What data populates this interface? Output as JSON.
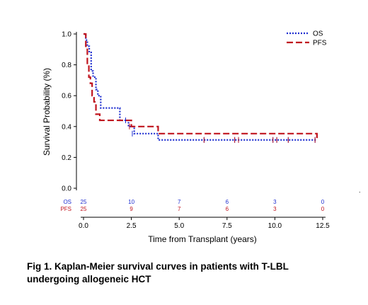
{
  "chart_data": {
    "type": "line",
    "title": "",
    "xlabel": "Time from Transplant (years)",
    "ylabel": "Survival Probability (%)",
    "xlim": [
      0,
      12.5
    ],
    "ylim": [
      0,
      1.0
    ],
    "x_ticks": [
      "0.0",
      "2.5",
      "5.0",
      "7.5",
      "10.0",
      "12.5"
    ],
    "x_tick_values": [
      0,
      2.5,
      5,
      7.5,
      10,
      12.5
    ],
    "y_ticks": [
      "0.0",
      "0.2",
      "0.4",
      "0.6",
      "0.8",
      "1.0"
    ],
    "y_tick_values": [
      0,
      0.2,
      0.4,
      0.6,
      0.8,
      1.0
    ],
    "grid": false,
    "legend_position": "top-right",
    "series": [
      {
        "name": "OS",
        "color": "#1f2fd0",
        "style": "dotted",
        "x": [
          0,
          0.12,
          0.2,
          0.3,
          0.4,
          0.5,
          0.65,
          0.75,
          0.9,
          1.9,
          2.35,
          2.65,
          3.9,
          12.2
        ],
        "y": [
          1.0,
          0.96,
          0.92,
          0.88,
          0.76,
          0.72,
          0.64,
          0.6,
          0.52,
          0.44,
          0.4,
          0.354,
          0.313,
          0.313
        ],
        "censor_x": [
          2.2,
          2.55,
          6.3,
          7.9,
          8.1,
          9.9,
          10.1,
          10.7,
          12.1
        ],
        "censor_y": [
          0.44,
          0.354,
          0.313,
          0.313,
          0.313,
          0.313,
          0.313,
          0.313,
          0.313
        ]
      },
      {
        "name": "PFS",
        "color": "#c0141e",
        "style": "dashed",
        "x": [
          0,
          0.12,
          0.2,
          0.28,
          0.36,
          0.45,
          0.55,
          0.65,
          0.85,
          2.5,
          3.9,
          12.2
        ],
        "y": [
          1.0,
          0.92,
          0.8,
          0.72,
          0.68,
          0.6,
          0.56,
          0.48,
          0.44,
          0.4,
          0.354,
          0.313
        ],
        "censor_x": [
          2.4,
          6.3,
          7.9,
          8.1,
          9.9,
          10.1,
          10.7,
          12.1
        ],
        "censor_y": [
          0.4,
          0.313,
          0.313,
          0.313,
          0.313,
          0.313,
          0.313,
          0.313
        ]
      }
    ],
    "risk_table": {
      "times": [
        0,
        2.5,
        5.0,
        7.5,
        10.0,
        12.5
      ],
      "rows": [
        {
          "label": "OS",
          "color": "#1f2fd0",
          "counts": [
            "25",
            "10",
            "7",
            "6",
            "3",
            "0"
          ]
        },
        {
          "label": "PFS",
          "color": "#c0141e",
          "counts": [
            "25",
            "9",
            "7",
            "6",
            "3",
            "0"
          ]
        }
      ]
    }
  },
  "caption": {
    "line1": "Fig 1. Kaplan-Meier survival curves in patients with T-LBL",
    "line2": "undergoing allogeneic HCT"
  }
}
